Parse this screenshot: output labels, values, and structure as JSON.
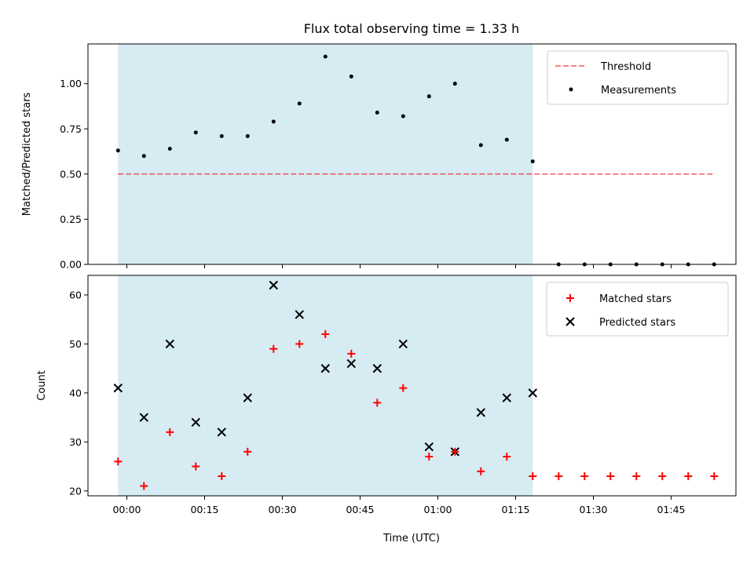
{
  "chart_data": {
    "type": "scatter",
    "title": "Flux total observing time = 1.33 h",
    "xlabel": "Time (UTC)",
    "x_ticks": [
      "00:00",
      "00:15",
      "00:30",
      "00:45",
      "01:00",
      "01:15",
      "01:30",
      "01:45"
    ],
    "x_tick_minutes": [
      0,
      15,
      30,
      45,
      60,
      75,
      90,
      105
    ],
    "xlim_minutes": [
      -7.5,
      117.5
    ],
    "shaded_interval_minutes": [
      -1.7,
      78.3
    ],
    "shade_color": "#add8e6",
    "panels": [
      {
        "ylabel": "Matched/Predicted stars",
        "ylim": [
          0,
          1.22
        ],
        "y_ticks": [
          "0.00",
          "0.25",
          "0.50",
          "0.75",
          "1.00"
        ],
        "y_tick_values": [
          0,
          0.25,
          0.5,
          0.75,
          1.0
        ],
        "legend": {
          "position": "upper right",
          "entries": [
            "Threshold",
            "Measurements"
          ]
        },
        "threshold": {
          "name": "Threshold",
          "value": 0.5,
          "x_minutes": [
            -1.7,
            113.3
          ],
          "color": "#ff0000",
          "style": "dashed"
        },
        "measurements": {
          "name": "Measurements",
          "color": "#000000",
          "x_minutes": [
            -1.7,
            3.3,
            8.3,
            13.3,
            18.3,
            23.3,
            28.3,
            33.3,
            38.3,
            43.3,
            48.3,
            53.3,
            58.3,
            63.3,
            68.3,
            73.3,
            78.3,
            83.3,
            88.3,
            93.3,
            98.3,
            103.3,
            108.3,
            113.3
          ],
          "y": [
            0.63,
            0.6,
            0.64,
            0.73,
            0.71,
            0.71,
            0.79,
            0.89,
            1.15,
            1.04,
            0.84,
            0.82,
            0.93,
            1.0,
            0.66,
            0.69,
            0.57,
            0,
            0,
            0,
            0,
            0,
            0,
            0
          ]
        }
      },
      {
        "ylabel": "Count",
        "ylim": [
          19,
          64
        ],
        "y_ticks": [
          "20",
          "30",
          "40",
          "50",
          "60"
        ],
        "y_tick_values": [
          20,
          30,
          40,
          50,
          60
        ],
        "legend": {
          "position": "upper right",
          "entries": [
            "Matched stars",
            "Predicted stars"
          ]
        },
        "matched": {
          "name": "Matched stars",
          "color": "#ff0000",
          "marker": "+",
          "x_minutes": [
            -1.7,
            3.3,
            8.3,
            13.3,
            18.3,
            23.3,
            28.3,
            33.3,
            38.3,
            43.3,
            48.3,
            53.3,
            58.3,
            63.3,
            68.3,
            73.3,
            78.3,
            83.3,
            88.3,
            93.3,
            98.3,
            103.3,
            108.3,
            113.3
          ],
          "y": [
            26,
            21,
            32,
            25,
            23,
            28,
            49,
            50,
            52,
            48,
            38,
            41,
            27,
            28,
            24,
            27,
            23,
            23,
            23,
            23,
            23,
            23,
            23,
            23
          ]
        },
        "predicted": {
          "name": "Predicted stars",
          "color": "#000000",
          "marker": "x",
          "x_minutes": [
            -1.7,
            3.3,
            8.3,
            13.3,
            18.3,
            23.3,
            28.3,
            33.3,
            38.3,
            43.3,
            48.3,
            53.3,
            58.3,
            63.3,
            68.3,
            73.3,
            78.3
          ],
          "y": [
            41,
            35,
            50,
            34,
            32,
            39,
            62,
            56,
            45,
            46,
            45,
            50,
            29,
            28,
            36,
            39,
            40
          ]
        }
      }
    ]
  }
}
